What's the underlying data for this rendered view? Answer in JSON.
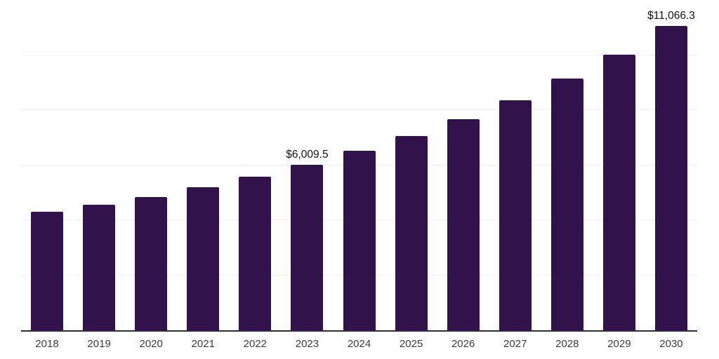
{
  "chart_data": {
    "type": "bar",
    "title": "",
    "xlabel": "",
    "ylabel": "",
    "categories": [
      "2018",
      "2019",
      "2020",
      "2021",
      "2022",
      "2023",
      "2024",
      "2025",
      "2026",
      "2027",
      "2028",
      "2029",
      "2030"
    ],
    "values": [
      4310,
      4570,
      4850,
      5210,
      5590,
      6009.5,
      6535,
      7045,
      7660,
      8350,
      9150,
      10010,
      11066.3
    ],
    "data_labels": [
      "",
      "",
      "",
      "",
      "",
      "$6,009.5",
      "",
      "",
      "",
      "",
      "",
      "",
      "$11,066.3"
    ],
    "ylim": [
      0,
      12000
    ],
    "grid_interval": 2000,
    "grid": "horizontal",
    "y_tick_labels": "none",
    "legend_position": "none",
    "colors": {
      "bar": "#32124b",
      "gridline": "#f0f0f3",
      "axis_line": "#2e2e2e",
      "tick_label": "#3c3c3c",
      "data_label": "#111111",
      "background": "#ffffff"
    }
  }
}
